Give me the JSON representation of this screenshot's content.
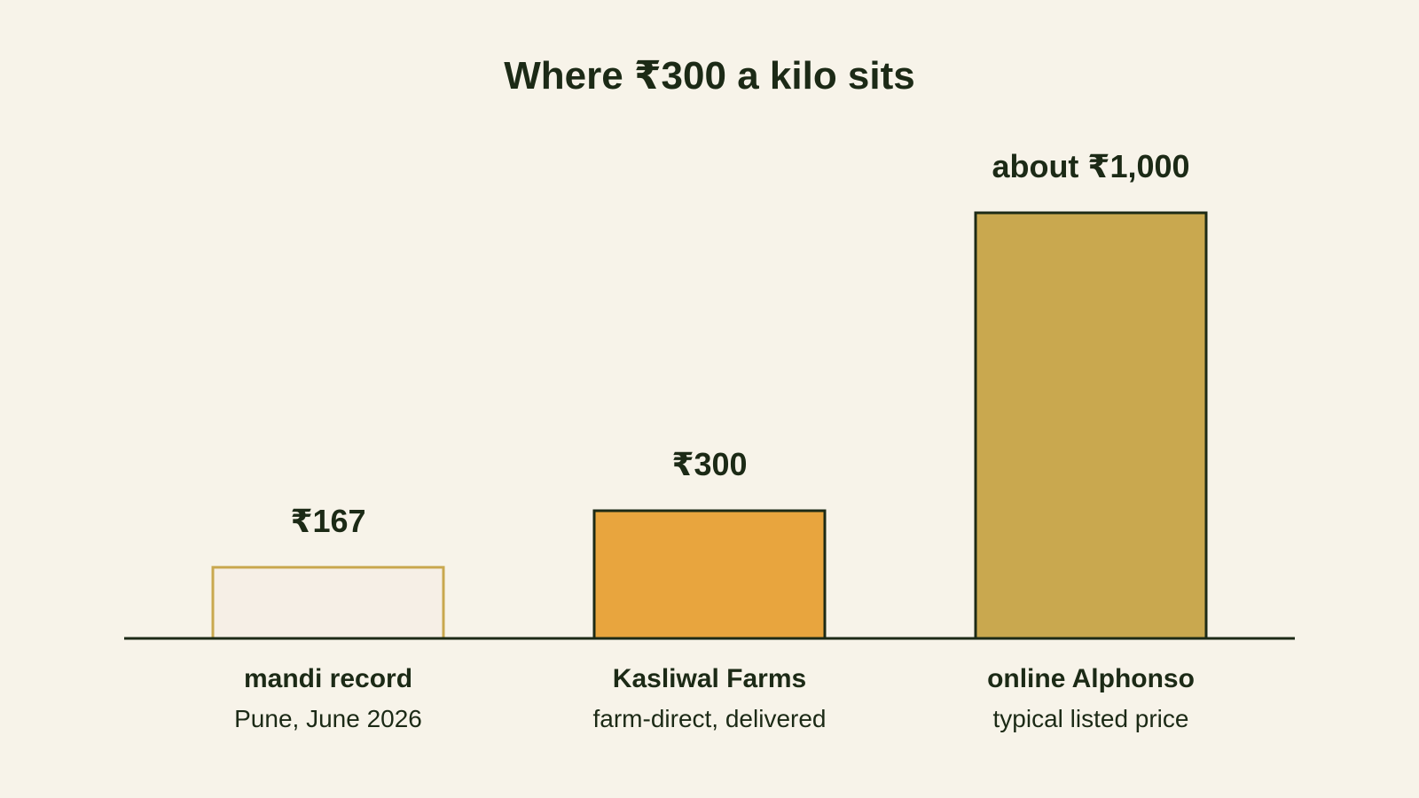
{
  "chart_data": {
    "type": "bar",
    "title": "Where ₹300 a kilo sits",
    "xlabel": "",
    "ylabel": "",
    "ylim": [
      0,
      1000
    ],
    "grid": false,
    "legend": "none",
    "categories": [
      "mandi record",
      "Kasliwal Farms",
      "online Alphonso"
    ],
    "subtitles": [
      "Pune, June 2026",
      "farm-direct, delivered",
      "typical listed price"
    ],
    "values": [
      167,
      300,
      1000
    ],
    "value_labels": [
      "₹167",
      "₹300",
      "about ₹1,000"
    ],
    "bar_fills": [
      "#F6EFE6",
      "#E8A53E",
      "#C9A84F"
    ],
    "bar_strokes": [
      "#C9A84F",
      "#1C2A16",
      "#1C2A16"
    ],
    "text_color": "#1C2A16",
    "background": "#F7F3E9"
  }
}
